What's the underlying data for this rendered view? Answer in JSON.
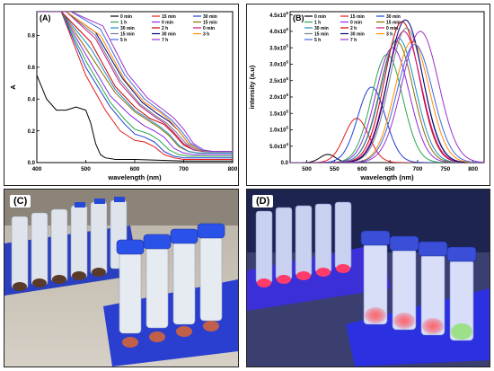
{
  "panels": {
    "a_label": "(A)",
    "b_label": "(B)",
    "c_label": "(C)",
    "d_label": "(D)"
  },
  "chart_data": [
    {
      "type": "line",
      "panel": "(A)",
      "title": "",
      "xlabel": "wavelength (nm)",
      "ylabel": "A",
      "xlim": [
        400,
        800
      ],
      "ylim": [
        0,
        0.95
      ],
      "xticks": [
        400,
        500,
        600,
        700,
        800
      ],
      "yticks": [
        0.0,
        0.2,
        0.4,
        0.6,
        0.8
      ],
      "ytick_labels": [
        "0.0",
        "0.2",
        "0.4",
        "0.6",
        "0.8"
      ],
      "grid": false,
      "legend_position": "top-right",
      "legend_columns": 3,
      "series": [
        {
          "name": "0 min",
          "color": "#000000",
          "x": [
            400,
            420,
            440,
            460,
            480,
            500,
            510,
            520,
            530,
            540,
            560,
            600,
            700,
            800
          ],
          "y": [
            0.55,
            0.4,
            0.33,
            0.33,
            0.35,
            0.33,
            0.25,
            0.12,
            0.05,
            0.03,
            0.02,
            0.02,
            0.01,
            0.01
          ]
        },
        {
          "name": "15 min",
          "color": "#e41a1c",
          "x": [
            400,
            450,
            500,
            540,
            570,
            600,
            620,
            640,
            660,
            680,
            700,
            750,
            800
          ],
          "y": [
            0.95,
            0.95,
            0.55,
            0.33,
            0.2,
            0.14,
            0.13,
            0.1,
            0.05,
            0.03,
            0.02,
            0.02,
            0.02
          ]
        },
        {
          "name": "30 min",
          "color": "#1f3fd4",
          "x": [
            400,
            450,
            500,
            550,
            580,
            600,
            620,
            640,
            660,
            680,
            700,
            750,
            800
          ],
          "y": [
            0.95,
            0.95,
            0.6,
            0.35,
            0.24,
            0.18,
            0.16,
            0.13,
            0.07,
            0.04,
            0.03,
            0.03,
            0.03
          ]
        },
        {
          "name": "1 h",
          "color": "#2aa84a",
          "x": [
            400,
            450,
            500,
            550,
            580,
            600,
            630,
            650,
            670,
            690,
            710,
            750,
            800
          ],
          "y": [
            0.95,
            0.95,
            0.64,
            0.38,
            0.27,
            0.21,
            0.18,
            0.14,
            0.08,
            0.05,
            0.04,
            0.04,
            0.04
          ]
        },
        {
          "name": "0 min",
          "color": "#8a2be2",
          "x": [
            400,
            450,
            500,
            550,
            590,
            620,
            640,
            660,
            680,
            700,
            720,
            800
          ],
          "y": [
            0.95,
            0.95,
            0.68,
            0.42,
            0.3,
            0.23,
            0.2,
            0.16,
            0.09,
            0.06,
            0.05,
            0.05
          ]
        },
        {
          "name": "15 min",
          "color": "#8b6b00",
          "x": [
            400,
            450,
            500,
            560,
            600,
            630,
            650,
            670,
            690,
            710,
            730,
            800
          ],
          "y": [
            0.95,
            0.95,
            0.72,
            0.44,
            0.32,
            0.26,
            0.22,
            0.17,
            0.1,
            0.07,
            0.06,
            0.06
          ]
        },
        {
          "name": "30 min",
          "color": "#1a8fc9",
          "x": [
            400,
            450,
            510,
            560,
            600,
            630,
            650,
            670,
            690,
            710,
            730,
            800
          ],
          "y": [
            0.95,
            0.95,
            0.72,
            0.46,
            0.33,
            0.27,
            0.23,
            0.18,
            0.11,
            0.07,
            0.06,
            0.06
          ]
        },
        {
          "name": "2 h",
          "color": "#cc0000",
          "x": [
            400,
            450,
            510,
            560,
            600,
            630,
            660,
            680,
            700,
            720,
            740,
            800
          ],
          "y": [
            0.95,
            0.95,
            0.76,
            0.48,
            0.35,
            0.28,
            0.24,
            0.18,
            0.11,
            0.08,
            0.07,
            0.07
          ]
        },
        {
          "name": "0 min",
          "color": "#c71585",
          "x": [
            400,
            460,
            520,
            570,
            610,
            640,
            660,
            680,
            700,
            720,
            740,
            800
          ],
          "y": [
            0.95,
            0.95,
            0.78,
            0.5,
            0.36,
            0.29,
            0.25,
            0.19,
            0.12,
            0.08,
            0.07,
            0.07
          ]
        },
        {
          "name": "15 min",
          "color": "#708090",
          "x": [
            400,
            460,
            520,
            570,
            610,
            640,
            665,
            685,
            705,
            725,
            745,
            800
          ],
          "y": [
            0.95,
            0.95,
            0.8,
            0.52,
            0.37,
            0.3,
            0.25,
            0.19,
            0.12,
            0.08,
            0.07,
            0.07
          ]
        },
        {
          "name": "30 min",
          "color": "#000080",
          "x": [
            400,
            460,
            520,
            575,
            615,
            645,
            670,
            690,
            710,
            730,
            750,
            800
          ],
          "y": [
            0.95,
            0.95,
            0.82,
            0.53,
            0.38,
            0.31,
            0.26,
            0.2,
            0.12,
            0.08,
            0.07,
            0.07
          ]
        },
        {
          "name": "3 h",
          "color": "#ff8c00",
          "x": [
            400,
            460,
            530,
            580,
            620,
            650,
            670,
            690,
            710,
            730,
            750,
            800
          ],
          "y": [
            0.95,
            0.95,
            0.8,
            0.52,
            0.38,
            0.32,
            0.27,
            0.2,
            0.12,
            0.08,
            0.07,
            0.07
          ]
        },
        {
          "name": "5 h",
          "color": "#4169e1",
          "x": [
            400,
            470,
            530,
            580,
            620,
            650,
            675,
            695,
            715,
            735,
            755,
            800
          ],
          "y": [
            0.95,
            0.95,
            0.84,
            0.55,
            0.4,
            0.33,
            0.27,
            0.2,
            0.12,
            0.08,
            0.07,
            0.07
          ]
        },
        {
          "name": "7 h",
          "color": "#9932cc",
          "x": [
            400,
            470,
            535,
            585,
            625,
            655,
            680,
            700,
            720,
            740,
            760,
            800
          ],
          "y": [
            0.95,
            0.95,
            0.86,
            0.56,
            0.41,
            0.34,
            0.28,
            0.21,
            0.12,
            0.08,
            0.07,
            0.07
          ]
        }
      ]
    },
    {
      "type": "line",
      "panel": "(B)",
      "title": "",
      "xlabel": "wavelength (nm)",
      "ylabel": "intensity (a.u)",
      "xlim": [
        470,
        820
      ],
      "ylim": [
        0,
        4.6
      ],
      "y_multiplier_exponent": "5",
      "xticks": [
        500,
        550,
        600,
        650,
        700,
        750,
        800
      ],
      "yticks": [
        0.0,
        0.5,
        1.0,
        1.5,
        2.0,
        2.5,
        3.0,
        3.5,
        4.0,
        4.5
      ],
      "ytick_labels": [
        "0.0",
        "5.0x10",
        "1.0x10",
        "1.5x10",
        "2.0x10",
        "2.5x10",
        "3.0x10",
        "3.5x10",
        "4.0x10",
        "4.5x10"
      ],
      "ytick_exponents": [
        "",
        "4",
        "5",
        "5",
        "5",
        "5",
        "5",
        "5",
        "5",
        "5"
      ],
      "grid": false,
      "legend_position": "top-left",
      "legend_columns": 3,
      "series": [
        {
          "name": "0 min",
          "color": "#000000",
          "center": 538,
          "width": 14,
          "peak": 0.25
        },
        {
          "name": "15 min",
          "color": "#e41a1c",
          "center": 590,
          "width": 22,
          "peak": 1.35
        },
        {
          "name": "30 min",
          "color": "#1f3fd4",
          "center": 617,
          "width": 25,
          "peak": 2.3
        },
        {
          "name": "1 h",
          "color": "#2aa84a",
          "center": 645,
          "width": 28,
          "peak": 3.3
        },
        {
          "name": "0 min",
          "color": "#8a2be2",
          "center": 655,
          "width": 30,
          "peak": 3.5
        },
        {
          "name": "15 min",
          "color": "#8b6b00",
          "center": 662,
          "width": 30,
          "peak": 3.7
        },
        {
          "name": "30 min",
          "color": "#1a8fc9",
          "center": 665,
          "width": 31,
          "peak": 3.8
        },
        {
          "name": "2 h",
          "color": "#cc0000",
          "center": 672,
          "width": 31,
          "peak": 4.3
        },
        {
          "name": "0 min",
          "color": "#c71585",
          "center": 675,
          "width": 31,
          "peak": 4.0
        },
        {
          "name": "15 min",
          "color": "#708090",
          "center": 680,
          "width": 31,
          "peak": 4.1
        },
        {
          "name": "30 min",
          "color": "#000080",
          "center": 678,
          "width": 31,
          "peak": 4.35
        },
        {
          "name": "3 h",
          "color": "#ff8c00",
          "center": 690,
          "width": 31,
          "peak": 3.7
        },
        {
          "name": "5 h",
          "color": "#4169e1",
          "center": 695,
          "width": 32,
          "peak": 3.6
        },
        {
          "name": "7 h",
          "color": "#9932cc",
          "center": 705,
          "width": 33,
          "peak": 4.0
        }
      ]
    }
  ]
}
